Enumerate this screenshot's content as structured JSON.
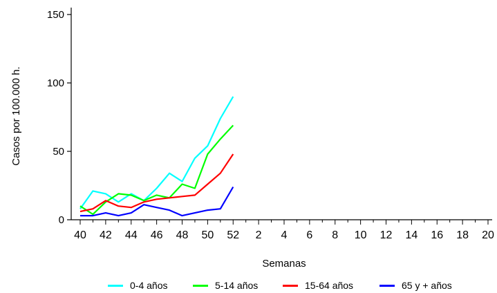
{
  "chart_data": {
    "type": "line",
    "xlabel": "Semanas",
    "ylabel": "Casos por 100.000 h.",
    "x_ticks": [
      "40",
      "42",
      "44",
      "46",
      "48",
      "50",
      "52",
      "2",
      "4",
      "6",
      "8",
      "10",
      "12",
      "14",
      "16",
      "18",
      "20"
    ],
    "y_ticks": [
      "0",
      "50",
      "100",
      "150"
    ],
    "ylim": [
      0,
      150
    ],
    "x_weeks": [
      40,
      41,
      42,
      43,
      44,
      45,
      46,
      47,
      48,
      49,
      50,
      51,
      52
    ],
    "series": [
      {
        "name": "0-4 años",
        "color": "#00ffff",
        "values": [
          8,
          21,
          19,
          13,
          19,
          14,
          23,
          34,
          28,
          45,
          54,
          74,
          90
        ]
      },
      {
        "name": "5-14 años",
        "color": "#00ff00",
        "values": [
          10,
          4,
          13,
          19,
          18,
          14,
          18,
          16,
          26,
          23,
          48,
          59,
          69
        ]
      },
      {
        "name": "15-64 años",
        "color": "#ff0000",
        "values": [
          6,
          8,
          14,
          10,
          9,
          13,
          15,
          16,
          17,
          18,
          26,
          34,
          48
        ]
      },
      {
        "name": "65 y + años",
        "color": "#0000ff",
        "values": [
          3,
          3,
          5,
          3,
          5,
          11,
          9,
          7,
          3,
          5,
          7,
          8,
          24
        ]
      }
    ],
    "grid": false,
    "legend_position": "bottom"
  }
}
